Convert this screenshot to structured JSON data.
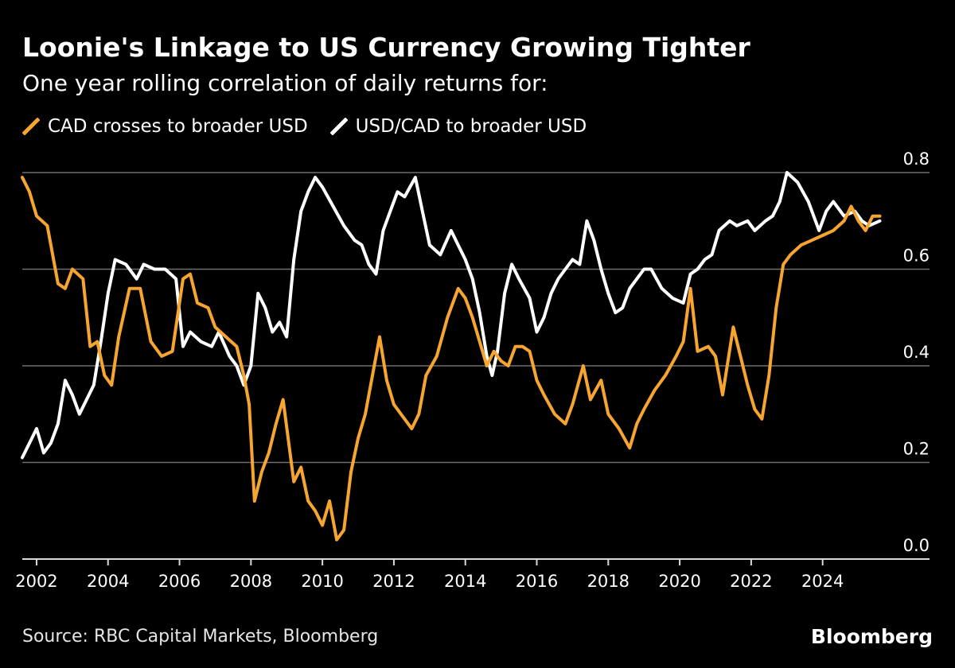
{
  "chart_data": {
    "type": "line",
    "title": "Loonie's Linkage to US Currency Growing Tighter",
    "subtitle": "One year rolling correlation of daily returns for:",
    "source": "Source: RBC Capital Markets, Bloomberg",
    "brand": "Bloomberg",
    "xlim": [
      2001.6,
      2025.7
    ],
    "ylim": [
      0.0,
      0.8
    ],
    "y_ticks": [
      0.0,
      0.2,
      0.4,
      0.6,
      0.8
    ],
    "y_tick_labels": [
      "0.0",
      "0.2",
      "0.4",
      "0.6",
      "0.8"
    ],
    "x_ticks": [
      2002,
      2004,
      2006,
      2008,
      2010,
      2012,
      2014,
      2016,
      2018,
      2020,
      2022,
      2024
    ],
    "x_tick_labels": [
      "2002",
      "2004",
      "2006",
      "2008",
      "2010",
      "2012",
      "2014",
      "2016",
      "2018",
      "2020",
      "2022",
      "2024"
    ],
    "grid": true,
    "series": [
      {
        "name": "CAD crosses to broader USD",
        "color": "#f7a531",
        "x": [
          2001.6,
          2001.8,
          2002.0,
          2002.3,
          2002.6,
          2002.8,
          2003.0,
          2003.3,
          2003.5,
          2003.7,
          2003.9,
          2004.1,
          2004.3,
          2004.6,
          2004.9,
          2005.2,
          2005.5,
          2005.8,
          2006.1,
          2006.3,
          2006.5,
          2006.8,
          2007.0,
          2007.3,
          2007.6,
          2007.8,
          2007.95,
          2008.1,
          2008.3,
          2008.5,
          2008.7,
          2008.9,
          2009.2,
          2009.4,
          2009.6,
          2009.8,
          2010.0,
          2010.2,
          2010.4,
          2010.6,
          2010.8,
          2011.0,
          2011.2,
          2011.4,
          2011.6,
          2011.8,
          2012.0,
          2012.2,
          2012.5,
          2012.7,
          2012.9,
          2013.2,
          2013.5,
          2013.8,
          2014.0,
          2014.2,
          2014.4,
          2014.6,
          2014.8,
          2015.0,
          2015.2,
          2015.4,
          2015.6,
          2015.8,
          2016.0,
          2016.2,
          2016.5,
          2016.8,
          2017.0,
          2017.3,
          2017.5,
          2017.8,
          2018.0,
          2018.3,
          2018.6,
          2018.8,
          2019.0,
          2019.3,
          2019.6,
          2019.9,
          2020.1,
          2020.3,
          2020.5,
          2020.8,
          2021.0,
          2021.2,
          2021.5,
          2021.7,
          2021.9,
          2022.1,
          2022.3,
          2022.5,
          2022.7,
          2022.9,
          2023.1,
          2023.4,
          2023.7,
          2024.0,
          2024.3,
          2024.6,
          2024.8,
          2025.0,
          2025.2,
          2025.4,
          2025.6
        ],
        "values": [
          0.79,
          0.76,
          0.71,
          0.69,
          0.57,
          0.56,
          0.6,
          0.58,
          0.44,
          0.45,
          0.38,
          0.36,
          0.46,
          0.56,
          0.56,
          0.45,
          0.42,
          0.43,
          0.58,
          0.59,
          0.53,
          0.52,
          0.48,
          0.46,
          0.44,
          0.38,
          0.32,
          0.12,
          0.18,
          0.22,
          0.28,
          0.33,
          0.16,
          0.19,
          0.12,
          0.1,
          0.07,
          0.12,
          0.04,
          0.06,
          0.18,
          0.25,
          0.3,
          0.38,
          0.46,
          0.37,
          0.32,
          0.3,
          0.27,
          0.3,
          0.38,
          0.42,
          0.5,
          0.56,
          0.54,
          0.5,
          0.45,
          0.4,
          0.43,
          0.41,
          0.4,
          0.44,
          0.44,
          0.43,
          0.37,
          0.34,
          0.3,
          0.28,
          0.32,
          0.4,
          0.33,
          0.37,
          0.3,
          0.27,
          0.23,
          0.28,
          0.31,
          0.35,
          0.38,
          0.42,
          0.45,
          0.56,
          0.43,
          0.44,
          0.42,
          0.34,
          0.48,
          0.42,
          0.36,
          0.31,
          0.29,
          0.38,
          0.52,
          0.61,
          0.63,
          0.65,
          0.66,
          0.67,
          0.68,
          0.7,
          0.73,
          0.7,
          0.68,
          0.71,
          0.71
        ]
      },
      {
        "name": "USD/CAD to broader USD",
        "color": "#ffffff",
        "x": [
          2001.6,
          2001.8,
          2002.0,
          2002.2,
          2002.4,
          2002.6,
          2002.8,
          2003.0,
          2003.2,
          2003.4,
          2003.6,
          2003.8,
          2004.0,
          2004.2,
          2004.5,
          2004.8,
          2005.0,
          2005.3,
          2005.6,
          2005.9,
          2006.1,
          2006.3,
          2006.6,
          2006.9,
          2007.1,
          2007.4,
          2007.6,
          2007.8,
          2008.0,
          2008.2,
          2008.4,
          2008.6,
          2008.8,
          2009.0,
          2009.2,
          2009.4,
          2009.6,
          2009.8,
          2010.0,
          2010.3,
          2010.6,
          2010.9,
          2011.1,
          2011.3,
          2011.5,
          2011.7,
          2011.9,
          2012.1,
          2012.3,
          2012.6,
          2012.8,
          2013.0,
          2013.3,
          2013.6,
          2013.8,
          2014.0,
          2014.2,
          2014.4,
          2014.6,
          2014.75,
          2014.9,
          2015.1,
          2015.3,
          2015.5,
          2015.8,
          2016.0,
          2016.2,
          2016.4,
          2016.6,
          2016.8,
          2017.0,
          2017.2,
          2017.4,
          2017.6,
          2017.8,
          2018.0,
          2018.2,
          2018.4,
          2018.6,
          2018.8,
          2019.0,
          2019.2,
          2019.5,
          2019.8,
          2020.1,
          2020.3,
          2020.5,
          2020.7,
          2020.9,
          2021.1,
          2021.4,
          2021.6,
          2021.9,
          2022.1,
          2022.4,
          2022.6,
          2022.8,
          2023.0,
          2023.3,
          2023.6,
          2023.9,
          2024.1,
          2024.3,
          2024.6,
          2024.9,
          2025.1,
          2025.3,
          2025.6
        ],
        "values": [
          0.21,
          0.24,
          0.27,
          0.22,
          0.24,
          0.28,
          0.37,
          0.34,
          0.3,
          0.33,
          0.36,
          0.45,
          0.55,
          0.62,
          0.61,
          0.58,
          0.61,
          0.6,
          0.6,
          0.58,
          0.44,
          0.47,
          0.45,
          0.44,
          0.47,
          0.42,
          0.4,
          0.36,
          0.4,
          0.55,
          0.52,
          0.47,
          0.49,
          0.46,
          0.62,
          0.72,
          0.76,
          0.79,
          0.77,
          0.73,
          0.69,
          0.66,
          0.65,
          0.61,
          0.59,
          0.68,
          0.72,
          0.76,
          0.75,
          0.79,
          0.72,
          0.65,
          0.63,
          0.68,
          0.65,
          0.62,
          0.58,
          0.51,
          0.42,
          0.38,
          0.43,
          0.55,
          0.61,
          0.58,
          0.54,
          0.47,
          0.5,
          0.55,
          0.58,
          0.6,
          0.62,
          0.61,
          0.7,
          0.66,
          0.6,
          0.55,
          0.51,
          0.52,
          0.56,
          0.58,
          0.6,
          0.6,
          0.56,
          0.54,
          0.53,
          0.59,
          0.6,
          0.62,
          0.63,
          0.68,
          0.7,
          0.69,
          0.7,
          0.68,
          0.7,
          0.71,
          0.74,
          0.8,
          0.78,
          0.74,
          0.68,
          0.72,
          0.74,
          0.71,
          0.72,
          0.7,
          0.69,
          0.7
        ]
      }
    ]
  }
}
